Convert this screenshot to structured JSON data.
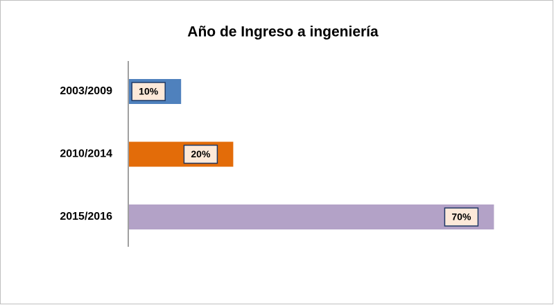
{
  "chart_data": {
    "type": "bar",
    "orientation": "horizontal",
    "title": "Año de Ingreso a ingeniería",
    "categories": [
      "2003/2009",
      "2010/2014",
      "2015/2016"
    ],
    "values": [
      10,
      20,
      70
    ],
    "value_labels": [
      "10%",
      "20%",
      "70%"
    ],
    "colors": [
      "#4f81bd",
      "#e36c09",
      "#b3a2c7"
    ]
  }
}
